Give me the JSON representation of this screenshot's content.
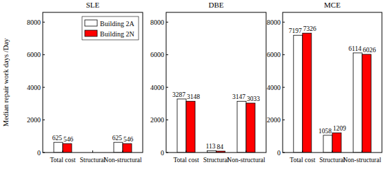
{
  "chart_data": [
    {
      "type": "bar",
      "title": "SLE",
      "y_label": "Median repair work days /Day",
      "categories": [
        "Total cost",
        "Structural",
        "Non-structural"
      ],
      "series": [
        {
          "name": "Building 2A",
          "color": "#ffffff",
          "values": [
            625,
            0,
            625
          ],
          "value_labels": [
            "625",
            null,
            "625"
          ]
        },
        {
          "name": "Building 2N",
          "color": "#ff0000",
          "values": [
            546,
            0,
            546
          ],
          "value_labels": [
            "546",
            null,
            "546"
          ]
        }
      ],
      "ylim": [
        0,
        8600
      ],
      "yticks": [
        0,
        2000,
        4000,
        6000,
        8000
      ],
      "data_labels": true,
      "legend": "upper right"
    },
    {
      "type": "bar",
      "title": "DBE",
      "categories": [
        "Total cost",
        "Structural",
        "Non-structural"
      ],
      "series": [
        {
          "name": "Building 2A",
          "color": "#ffffff",
          "values": [
            3287,
            113,
            3147
          ]
        },
        {
          "name": "Building 2N",
          "color": "#ff0000",
          "values": [
            3148,
            84,
            3033
          ]
        }
      ],
      "ylim": [
        0,
        8600
      ],
      "yticks": [
        0,
        2000,
        4000,
        6000,
        8000
      ],
      "data_labels": true,
      "legend": false
    },
    {
      "type": "bar",
      "title": "MCE",
      "categories": [
        "Total cost",
        "Structural",
        "Non-structural"
      ],
      "series": [
        {
          "name": "Building 2A",
          "color": "#ffffff",
          "values": [
            7197,
            1058,
            6114
          ]
        },
        {
          "name": "Building 2N",
          "color": "#ff0000",
          "values": [
            7326,
            1209,
            6026
          ]
        }
      ],
      "ylim": [
        0,
        8600
      ],
      "yticks": [
        0,
        2000,
        4000,
        6000,
        8000
      ],
      "data_labels": true,
      "legend": false
    }
  ]
}
